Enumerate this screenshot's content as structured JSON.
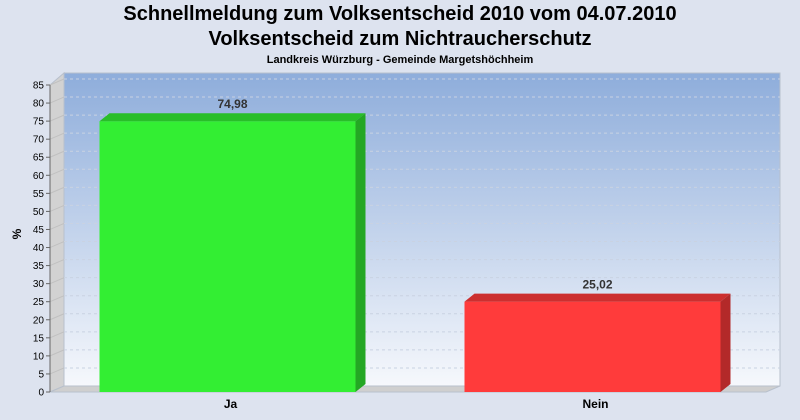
{
  "header": {
    "title_line1": "Schnellmeldung zum Volksentscheid 2010 vom 04.07.2010",
    "title_line2": "Volksentscheid zum Nichtraucherschutz",
    "subtitle": "Landkreis Würzburg - Gemeinde Margetshöchheim"
  },
  "chart_data": {
    "type": "bar",
    "categories": [
      "Ja",
      "Nein"
    ],
    "values": [
      74.98,
      25.02
    ],
    "value_labels": [
      "74,98",
      "25,02"
    ],
    "colors": [
      "#33ee33",
      "#ff3b3b"
    ],
    "ylabel": "%",
    "xlabel": "",
    "ylim": [
      0,
      85
    ],
    "yticks": [
      0,
      5,
      10,
      15,
      20,
      25,
      30,
      35,
      40,
      45,
      50,
      55,
      60,
      65,
      70,
      75,
      80,
      85
    ],
    "grid": true
  }
}
